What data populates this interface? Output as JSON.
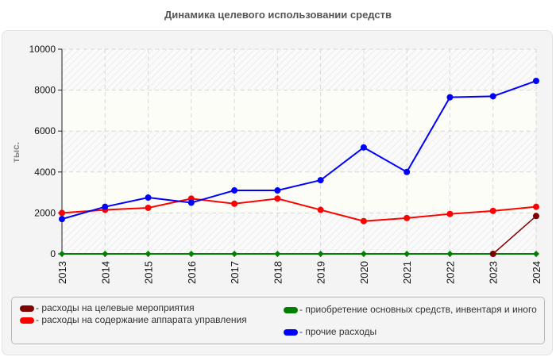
{
  "title": "Динамика целевого использовании средств",
  "chart_data": {
    "type": "line",
    "title": "Динамика целевого использовании средств",
    "xlabel": "",
    "ylabel": "тыс.",
    "ylim": [
      0,
      10000
    ],
    "yticks": [
      0,
      2000,
      4000,
      6000,
      8000,
      10000
    ],
    "grid": true,
    "legend_position": "bottom",
    "categories": [
      "2013",
      "2014",
      "2015",
      "2016",
      "2017",
      "2018",
      "2019",
      "2020",
      "2021",
      "2022",
      "2023",
      "2024"
    ],
    "series": [
      {
        "name": "расходы на целевые мероприятия",
        "color": "#800000",
        "values": [
          null,
          null,
          null,
          null,
          null,
          null,
          null,
          null,
          null,
          null,
          0,
          1850
        ]
      },
      {
        "name": "расходы на содержание аппарата управления",
        "color": "#ff0000",
        "values": [
          2000,
          2150,
          2250,
          2700,
          2450,
          2700,
          2150,
          1600,
          1750,
          1950,
          2100,
          2300
        ]
      },
      {
        "name": "приобретение основных средств, инвентаря и иного",
        "color": "#008000",
        "values": [
          0,
          0,
          0,
          0,
          0,
          0,
          0,
          0,
          0,
          0,
          0,
          0
        ]
      },
      {
        "name": "прочие расходы",
        "color": "#0000ff",
        "values": [
          1700,
          2300,
          2750,
          2500,
          3100,
          3100,
          3600,
          5200,
          4000,
          7650,
          7700,
          8450
        ]
      }
    ]
  },
  "legend": [
    {
      "label": "- расходы на целевые мероприятия",
      "color": "#800000"
    },
    {
      "label": "- расходы на содержание аппарата управления",
      "color": "#ff0000"
    },
    {
      "label": "- приобретение основных средств, инвентаря и иного",
      "color": "#008000"
    },
    {
      "label": "- прочие расходы",
      "color": "#0000ff"
    }
  ]
}
